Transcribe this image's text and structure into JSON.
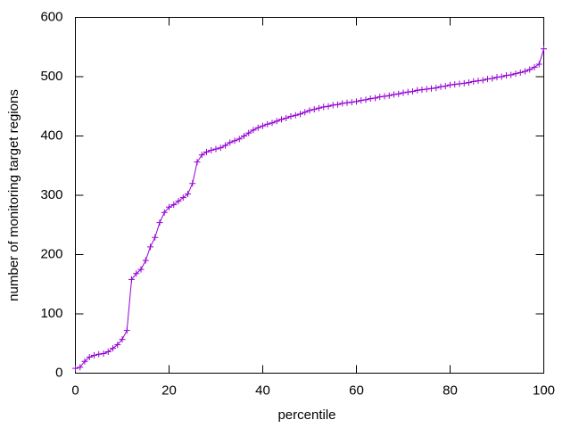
{
  "chart_data": {
    "type": "line",
    "xlabel": "percentile",
    "ylabel": "number of monitoring target regions",
    "x": [
      0,
      1,
      2,
      3,
      4,
      5,
      6,
      7,
      8,
      9,
      10,
      11,
      12,
      13,
      14,
      15,
      16,
      17,
      18,
      19,
      20,
      21,
      22,
      23,
      24,
      25,
      26,
      27,
      28,
      29,
      30,
      31,
      32,
      33,
      34,
      35,
      36,
      37,
      38,
      39,
      40,
      41,
      42,
      43,
      44,
      45,
      46,
      47,
      48,
      49,
      50,
      51,
      52,
      53,
      54,
      55,
      56,
      57,
      58,
      59,
      60,
      61,
      62,
      63,
      64,
      65,
      66,
      67,
      68,
      69,
      70,
      71,
      72,
      73,
      74,
      75,
      76,
      77,
      78,
      79,
      80,
      81,
      82,
      83,
      84,
      85,
      86,
      87,
      88,
      89,
      90,
      91,
      92,
      93,
      94,
      95,
      96,
      97,
      98,
      99,
      100
    ],
    "series": [
      {
        "color": "#9400d3",
        "marker": "+",
        "values": [
          8,
          10,
          20,
          27,
          30,
          32,
          33,
          36,
          42,
          48,
          57,
          72,
          158,
          168,
          175,
          190,
          213,
          229,
          254,
          271,
          280,
          284,
          290,
          296,
          302,
          320,
          356,
          368,
          373,
          376,
          378,
          380,
          384,
          389,
          392,
          395,
          400,
          405,
          410,
          414,
          417,
          420,
          422,
          425,
          428,
          430,
          433,
          435,
          437,
          440,
          443,
          445,
          447,
          449,
          450,
          452,
          453,
          455,
          456,
          457,
          458,
          460,
          461,
          463,
          464,
          466,
          467,
          468,
          470,
          471,
          473,
          474,
          475,
          477,
          478,
          479,
          480,
          481,
          483,
          484,
          486,
          487,
          488,
          489,
          490,
          492,
          493,
          494,
          496,
          497,
          499,
          500,
          502,
          503,
          505,
          507,
          509,
          512,
          516,
          521,
          547
        ]
      }
    ],
    "xlim": [
      0,
      100
    ],
    "xticks": [
      0,
      20,
      40,
      60,
      80,
      100
    ],
    "ylim": [
      0,
      600
    ],
    "yticks": [
      0,
      100,
      200,
      300,
      400,
      500,
      600
    ]
  }
}
